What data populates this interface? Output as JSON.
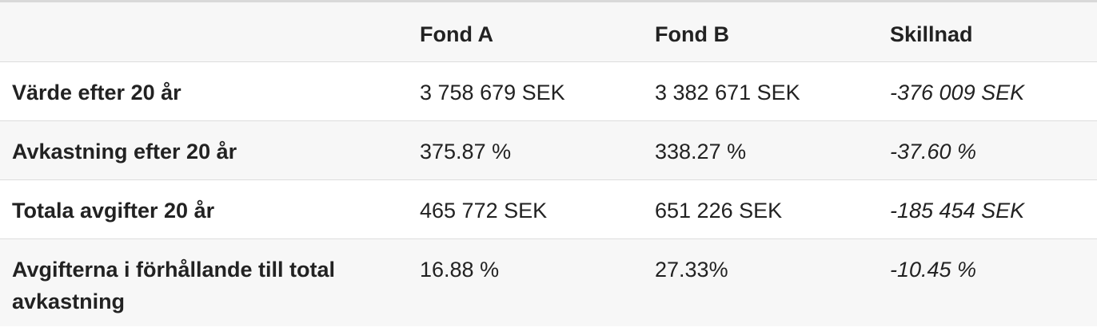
{
  "table": {
    "headers": [
      "",
      "Fond A",
      "Fond B",
      "Skillnad"
    ],
    "rows": [
      {
        "label": "Värde efter 20 år",
        "fond_a": "3 758 679 SEK",
        "fond_b": "3 382 671 SEK",
        "skillnad": "-376 009 SEK"
      },
      {
        "label": "Avkastning efter 20 år",
        "fond_a": "375.87 %",
        "fond_b": "338.27 %",
        "skillnad": "-37.60 %"
      },
      {
        "label": "Totala avgifter 20 år",
        "fond_a": "465 772 SEK",
        "fond_b": "651 226 SEK",
        "skillnad": "-185 454 SEK"
      },
      {
        "label": "Avgifterna i förhållande till total avkastning",
        "fond_a": "16.88 %",
        "fond_b": "27.33%",
        "skillnad": "-10.45 %"
      }
    ]
  }
}
